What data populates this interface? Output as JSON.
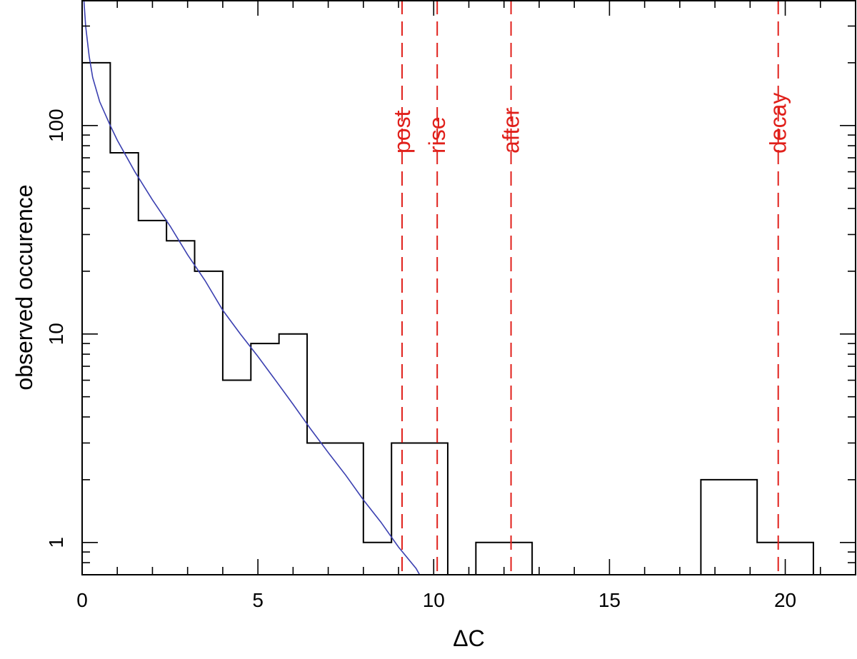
{
  "chart_data": {
    "type": "histogram",
    "title": "",
    "xlabel": "ΔC",
    "ylabel": "observed occurence",
    "xlim": [
      0,
      22
    ],
    "ylim": [
      0.7,
      400
    ],
    "yscale": "log",
    "grid": false,
    "x_ticks": [
      0,
      5,
      10,
      15,
      20
    ],
    "x_tick_labels": [
      "0",
      "5",
      "10",
      "15",
      "20"
    ],
    "y_ticks": [
      1,
      10,
      100
    ],
    "y_tick_labels": [
      "1",
      "10",
      "100"
    ],
    "histogram": {
      "color": "#000000",
      "bins": [
        {
          "x0": 0.0,
          "x1": 0.8,
          "count": 200
        },
        {
          "x0": 0.8,
          "x1": 1.6,
          "count": 74
        },
        {
          "x0": 1.6,
          "x1": 2.4,
          "count": 35
        },
        {
          "x0": 2.4,
          "x1": 3.2,
          "count": 28
        },
        {
          "x0": 3.2,
          "x1": 4.0,
          "count": 20
        },
        {
          "x0": 4.0,
          "x1": 4.8,
          "count": 6
        },
        {
          "x0": 4.8,
          "x1": 5.6,
          "count": 9
        },
        {
          "x0": 5.6,
          "x1": 6.4,
          "count": 10
        },
        {
          "x0": 6.4,
          "x1": 7.2,
          "count": 3
        },
        {
          "x0": 7.2,
          "x1": 8.0,
          "count": 3
        },
        {
          "x0": 8.0,
          "x1": 8.8,
          "count": 1
        },
        {
          "x0": 8.8,
          "x1": 9.6,
          "count": 3
        },
        {
          "x0": 9.6,
          "x1": 10.4,
          "count": 3
        },
        {
          "x0": 10.4,
          "x1": 11.2,
          "count": 0
        },
        {
          "x0": 11.2,
          "x1": 12.0,
          "count": 1
        },
        {
          "x0": 12.0,
          "x1": 12.8,
          "count": 1
        },
        {
          "x0": 12.8,
          "x1": 13.6,
          "count": 0
        },
        {
          "x0": 13.6,
          "x1": 14.4,
          "count": 0
        },
        {
          "x0": 14.4,
          "x1": 15.2,
          "count": 0
        },
        {
          "x0": 15.2,
          "x1": 16.0,
          "count": 0
        },
        {
          "x0": 16.0,
          "x1": 16.8,
          "count": 0
        },
        {
          "x0": 16.8,
          "x1": 17.6,
          "count": 0
        },
        {
          "x0": 17.6,
          "x1": 18.4,
          "count": 2
        },
        {
          "x0": 18.4,
          "x1": 19.2,
          "count": 2
        },
        {
          "x0": 19.2,
          "x1": 20.0,
          "count": 1
        },
        {
          "x0": 20.0,
          "x1": 20.8,
          "count": 1
        }
      ]
    },
    "fit_curve": {
      "color": "#3a3fb0",
      "points": [
        [
          0.05,
          400
        ],
        [
          0.1,
          300
        ],
        [
          0.2,
          215
        ],
        [
          0.3,
          170
        ],
        [
          0.5,
          130
        ],
        [
          0.8,
          100
        ],
        [
          1.0,
          85
        ],
        [
          1.5,
          60
        ],
        [
          2.0,
          44
        ],
        [
          2.5,
          33
        ],
        [
          3.0,
          24
        ],
        [
          3.5,
          18
        ],
        [
          4.0,
          13
        ],
        [
          4.5,
          10
        ],
        [
          5.0,
          7.8
        ],
        [
          5.5,
          6.0
        ],
        [
          6.0,
          4.6
        ],
        [
          6.5,
          3.5
        ],
        [
          7.0,
          2.7
        ],
        [
          7.5,
          2.1
        ],
        [
          8.0,
          1.6
        ],
        [
          8.5,
          1.25
        ],
        [
          9.0,
          0.95
        ],
        [
          9.5,
          0.75
        ],
        [
          9.6,
          0.7
        ]
      ]
    },
    "reference_lines": {
      "color": "#e0201b",
      "lines": [
        {
          "x": 9.1,
          "label": "post"
        },
        {
          "x": 10.1,
          "label": "rise"
        },
        {
          "x": 12.2,
          "label": "after"
        },
        {
          "x": 19.8,
          "label": "decay"
        }
      ]
    }
  }
}
